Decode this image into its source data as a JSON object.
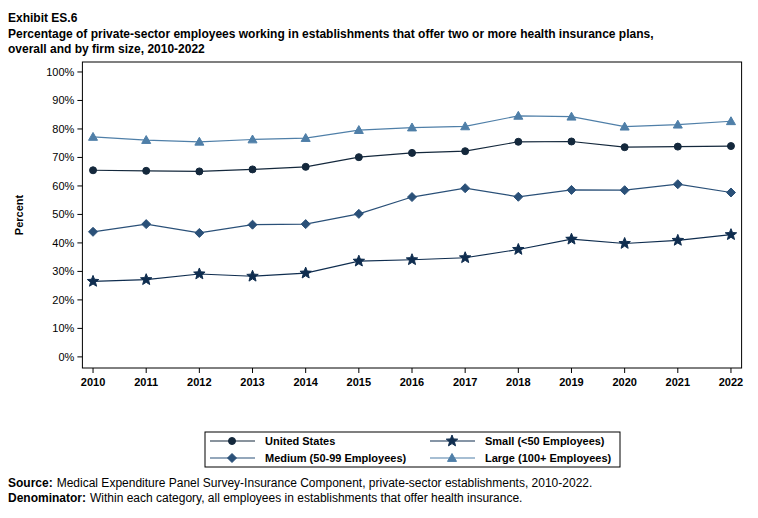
{
  "chart_data": {
    "type": "line",
    "exhibit": "Exhibit ES.6",
    "title": [
      "Percentage of private-sector employees working in establishments that offer two or more health insurance plans,",
      "overall and by firm size, 2010-2022"
    ],
    "y_label": "Percent",
    "x": [
      2010,
      2011,
      2012,
      2013,
      2014,
      2015,
      2016,
      2017,
      2018,
      2019,
      2020,
      2021,
      2022
    ],
    "xlim": [
      2009.8,
      2022.2
    ],
    "xticks": [
      2010,
      2011,
      2012,
      2013,
      2014,
      2015,
      2016,
      2017,
      2018,
      2019,
      2020,
      2021,
      2022
    ],
    "ylim": [
      -3.9,
      103.5
    ],
    "yticks": [
      {
        "value": 0,
        "label": "0%"
      },
      {
        "value": 10,
        "label": "10%"
      },
      {
        "value": 20,
        "label": "20%"
      },
      {
        "value": 30,
        "label": "30%"
      },
      {
        "value": 40,
        "label": "40%"
      },
      {
        "value": 50,
        "label": "50%"
      },
      {
        "value": 60,
        "label": "60%"
      },
      {
        "value": 70,
        "label": "70%"
      },
      {
        "value": 80,
        "label": "80%"
      },
      {
        "value": 90,
        "label": "90%"
      },
      {
        "value": 100,
        "label": "100%"
      }
    ],
    "grid": false,
    "legend": "bottom",
    "series": [
      {
        "name": "United States",
        "color": "#14283c",
        "marker": "circle",
        "values": [
          65.5,
          65.3,
          65.1,
          65.8,
          66.7,
          70.1,
          71.6,
          72.2,
          75.5,
          75.6,
          73.6,
          73.8,
          74.0
        ]
      },
      {
        "name": "Small (<50 Employees)",
        "color": "#0f2d4f",
        "marker": "star",
        "values": [
          26.5,
          27.1,
          29.1,
          28.3,
          29.4,
          33.6,
          34.1,
          34.8,
          37.7,
          41.3,
          39.8,
          40.9,
          42.9
        ]
      },
      {
        "name": "Medium (50-99 Employees)",
        "color": "#2a5078",
        "marker": "diamond",
        "values": [
          43.9,
          46.6,
          43.5,
          46.4,
          46.6,
          50.2,
          56.1,
          59.2,
          56.2,
          58.6,
          58.5,
          60.6,
          57.7
        ]
      },
      {
        "name": "Large (100+ Employees)",
        "color": "#4f7fa8",
        "marker": "triangle",
        "values": [
          77.2,
          76.1,
          75.5,
          76.3,
          76.8,
          79.6,
          80.5,
          80.9,
          84.6,
          84.3,
          80.8,
          81.5,
          82.7
        ]
      }
    ],
    "notes": [
      {
        "label": "Source:",
        "text": "Medical Expenditure Panel Survey-Insurance Component, private-sector establishments, 2010-2022."
      },
      {
        "label": "Denominator:",
        "text": "Within each category, all employees in establishments that offer health insurance."
      }
    ]
  }
}
